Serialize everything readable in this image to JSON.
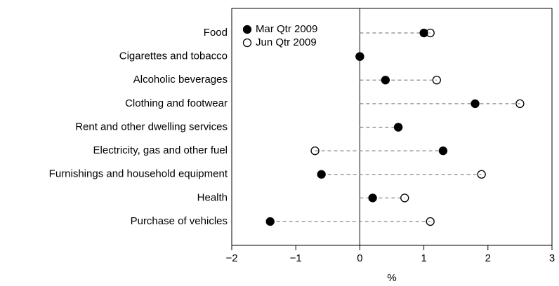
{
  "chart_data": {
    "type": "dot",
    "categories": [
      "Food",
      "Cigarettes and tobacco",
      "Alcoholic beverages",
      "Clothing and footwear",
      "Rent and other dwelling services",
      "Electricity, gas and other fuel",
      "Furnishings and household equipment",
      "Health",
      "Purchase of vehicles"
    ],
    "series": [
      {
        "name": "Mar Qtr 2009",
        "color": "#000000",
        "filled": true,
        "values": [
          1.0,
          0.0,
          0.4,
          1.8,
          0.6,
          1.3,
          -0.6,
          0.2,
          -1.4
        ]
      },
      {
        "name": "Jun Qtr 2009",
        "color": "#000000",
        "filled": false,
        "values": [
          1.1,
          0.0,
          1.2,
          2.5,
          0.6,
          -0.7,
          1.9,
          0.7,
          1.1
        ]
      }
    ],
    "xlabel": "%",
    "xlim": [
      -2,
      3
    ],
    "xticks": [
      {
        "value": -2,
        "label": "−2"
      },
      {
        "value": -1,
        "label": "−1"
      },
      0,
      1,
      2,
      3
    ],
    "legend": "upper left"
  }
}
